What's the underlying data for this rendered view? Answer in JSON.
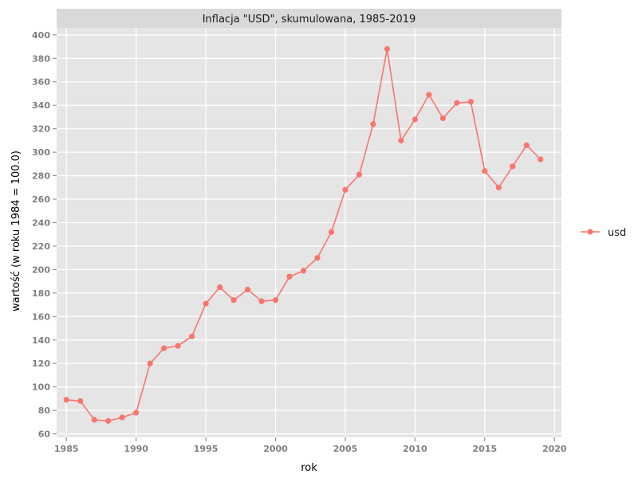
{
  "chart_data": {
    "type": "line",
    "title": "Inflacja \"USD\", skumulowana, 1985-2019",
    "xlabel": "rok",
    "ylabel": "wartość (w roku 1984 = 100.0)",
    "xlim": [
      1984.3,
      2020.5
    ],
    "ylim": [
      57,
      406
    ],
    "x_ticks": [
      1985,
      1990,
      1995,
      2000,
      2005,
      2010,
      2015,
      2020
    ],
    "y_ticks": [
      60,
      80,
      100,
      120,
      140,
      160,
      180,
      200,
      220,
      240,
      260,
      280,
      300,
      320,
      340,
      360,
      380,
      400
    ],
    "grid": true,
    "legend_position": "right",
    "series": [
      {
        "name": "usd",
        "color": "#F8766D",
        "x": [
          1985,
          1986,
          1987,
          1988,
          1989,
          1990,
          1991,
          1992,
          1993,
          1994,
          1995,
          1996,
          1997,
          1998,
          1999,
          2000,
          2001,
          2002,
          2003,
          2004,
          2005,
          2006,
          2007,
          2008,
          2009,
          2010,
          2011,
          2012,
          2013,
          2014,
          2015,
          2016,
          2017,
          2018,
          2019
        ],
        "values": [
          89,
          88,
          72,
          71,
          74,
          78,
          120,
          133,
          135,
          143,
          171,
          185,
          174,
          183,
          173,
          174,
          194,
          199,
          210,
          232,
          268,
          281,
          324,
          388,
          310,
          328,
          349,
          329,
          342,
          343,
          284,
          270,
          288,
          306,
          294
        ]
      }
    ]
  }
}
